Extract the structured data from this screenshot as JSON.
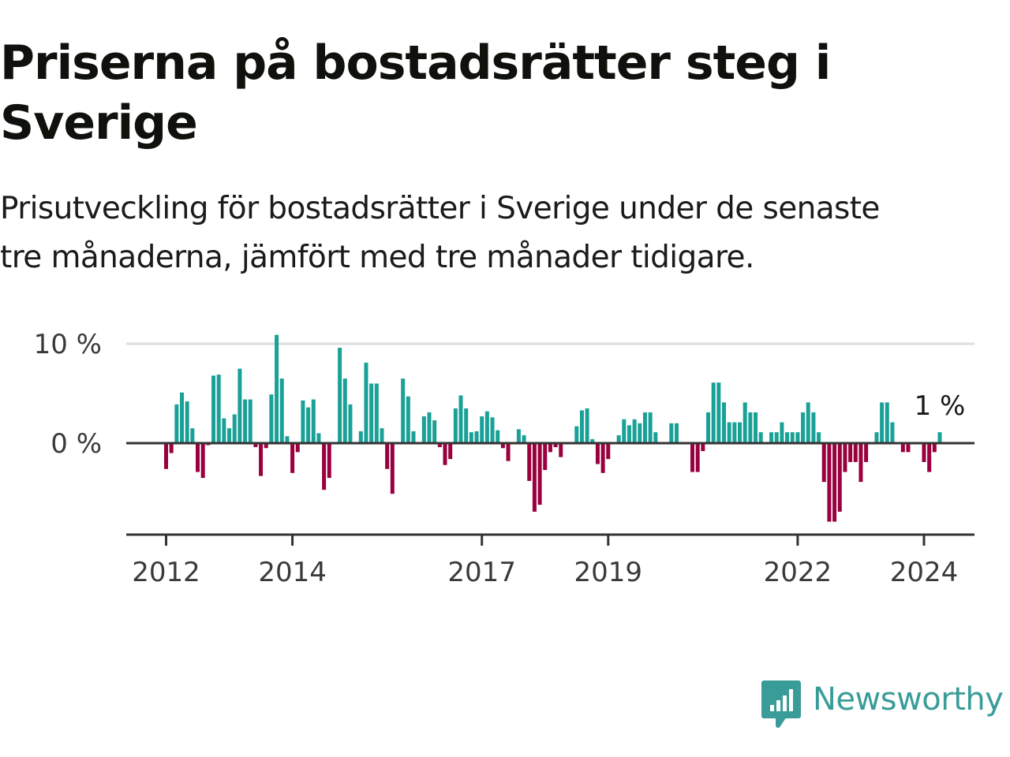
{
  "title": "Priserna på bostadsrätter steg i Sverige",
  "subtitle_line1": "Prisutveckling för bostadsrätter i Sverige under de senaste",
  "subtitle_line2": "tre månaderna, jämfört med tre månader tidigare.",
  "brand": "Newsworthy",
  "colors": {
    "positive": "#1aa197",
    "negative": "#99003d",
    "axis": "#333333",
    "grid": "#dddddd",
    "brand": "#3a9c98"
  },
  "chart_data": {
    "type": "bar",
    "ylim": [
      -9,
      11
    ],
    "yticks": [
      {
        "value": 0,
        "label": "0 %"
      },
      {
        "value": 10,
        "label": "10 %"
      }
    ],
    "grid": true,
    "xticks": [
      {
        "index": 0,
        "label": "2012"
      },
      {
        "index": 24,
        "label": "2014"
      },
      {
        "index": 60,
        "label": "2017"
      },
      {
        "index": 84,
        "label": "2019"
      },
      {
        "index": 120,
        "label": "2022"
      },
      {
        "index": 144,
        "label": "2024"
      }
    ],
    "last_value_label": "1 %",
    "values": [
      -2.6,
      -1,
      3.9,
      5.1,
      4.2,
      1.5,
      -2.9,
      -3.5,
      -0.2,
      6.8,
      6.9,
      2.5,
      1.5,
      2.9,
      7.5,
      4.4,
      4.4,
      -0.4,
      -3.3,
      -0.5,
      4.9,
      10.9,
      6.5,
      0.7,
      -3,
      -0.9,
      4.3,
      3.6,
      4.4,
      1,
      -4.7,
      -3.5,
      0,
      9.6,
      6.5,
      3.9,
      0,
      1.2,
      8.1,
      6,
      6,
      1.5,
      -2.6,
      -5.1,
      0,
      6.5,
      4.7,
      1.2,
      0,
      2.7,
      3.1,
      2.3,
      -0.4,
      -2.2,
      -1.6,
      3.5,
      4.8,
      3.5,
      1.1,
      1.2,
      2.7,
      3.2,
      2.6,
      1.3,
      -0.5,
      -1.8,
      0,
      1.4,
      0.8,
      -3.8,
      -6.9,
      -6.2,
      -2.7,
      -0.9,
      -0.4,
      -1.4,
      0,
      -0.1,
      1.7,
      3.3,
      3.5,
      0.4,
      -2.1,
      -3,
      -1.6,
      0,
      0.8,
      2.4,
      1.8,
      2.4,
      2,
      3.1,
      3.1,
      1.1,
      0,
      0,
      2,
      2,
      0,
      0,
      -2.9,
      -2.9,
      -0.8,
      3.1,
      6.1,
      6.1,
      4.1,
      2.1,
      2.1,
      2.1,
      4.1,
      3.1,
      3.1,
      1.1,
      0,
      1.1,
      1.1,
      2.1,
      1.1,
      1.1,
      1.1,
      3.1,
      4.1,
      3.1,
      1.1,
      -3.9,
      -7.9,
      -7.9,
      -6.9,
      -2.9,
      -1.9,
      -1.9,
      -3.9,
      -1.9,
      0,
      1.1,
      4.1,
      4.1,
      2.1,
      0,
      -0.9,
      -0.9,
      0,
      0,
      -1.9,
      -2.9,
      -0.9,
      1.1
    ]
  }
}
